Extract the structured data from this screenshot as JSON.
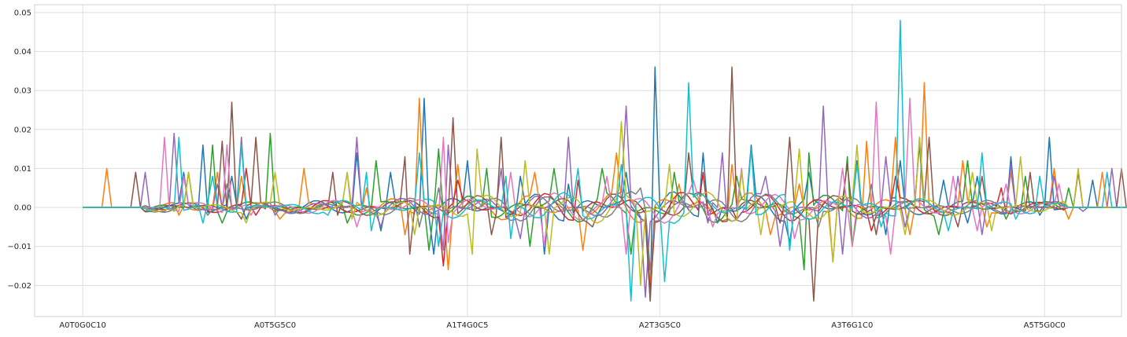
{
  "chart_data": {
    "type": "line",
    "title": "",
    "xlabel": "",
    "ylabel": "",
    "ylim": [
      -0.028,
      0.052
    ],
    "yticks": [
      -0.02,
      -0.01,
      0.0,
      0.01,
      0.02,
      0.03,
      0.04,
      0.05
    ],
    "ytick_labels": [
      "−0.02",
      "−0.01",
      "0.00",
      "0.01",
      "0.02",
      "0.03",
      "0.04",
      "0.05"
    ],
    "xlim": [
      -10,
      216
    ],
    "xticks": [
      0,
      40,
      80,
      120,
      160,
      200
    ],
    "xtick_labels": [
      "A0T0G0C10",
      "A0T5G5C0",
      "A1T4G0C5",
      "A2T3G5C0",
      "A3T6G1C0",
      "A5T5G0C0"
    ],
    "grid": true,
    "legend": "none",
    "n_points": 228,
    "colors": [
      "#1f77b4",
      "#ff7f0e",
      "#2ca02c",
      "#d62728",
      "#9467bd",
      "#8c564b",
      "#e377c2",
      "#7f7f7f",
      "#bcbd22",
      "#17becf"
    ],
    "series": [
      {
        "color": "#1f77b4",
        "peaks": [
          [
            21,
            0.009
          ],
          [
            25,
            0.016
          ],
          [
            31,
            0.008
          ],
          [
            57,
            0.014
          ],
          [
            64,
            0.009
          ],
          [
            71,
            0.028
          ],
          [
            80,
            0.012
          ],
          [
            91,
            0.008
          ],
          [
            101,
            0.006
          ],
          [
            113,
            0.009
          ],
          [
            119,
            0.036
          ],
          [
            129,
            0.014
          ],
          [
            139,
            0.016
          ],
          [
            151,
            0.009
          ],
          [
            161,
            0.012
          ],
          [
            170,
            0.012
          ],
          [
            179,
            0.007
          ],
          [
            186,
            0.008
          ],
          [
            193,
            0.013
          ],
          [
            201,
            0.018
          ],
          [
            210,
            0.007
          ]
        ],
        "dips": [
          [
            34,
            -0.003
          ],
          [
            62,
            -0.006
          ],
          [
            73,
            -0.012
          ],
          [
            96,
            -0.012
          ],
          [
            118,
            -0.024
          ],
          [
            132,
            -0.004
          ],
          [
            147,
            -0.009
          ],
          [
            167,
            -0.007
          ],
          [
            184,
            -0.004
          ],
          [
            199,
            -0.002
          ]
        ]
      },
      {
        "color": "#ff7f0e",
        "peaks": [
          [
            5,
            0.01
          ],
          [
            28,
            0.009
          ],
          [
            33,
            0.008
          ],
          [
            46,
            0.01
          ],
          [
            59,
            0.005
          ],
          [
            70,
            0.028
          ],
          [
            78,
            0.011
          ],
          [
            94,
            0.009
          ],
          [
            111,
            0.014
          ],
          [
            124,
            0.006
          ],
          [
            135,
            0.011
          ],
          [
            149,
            0.006
          ],
          [
            163,
            0.017
          ],
          [
            169,
            0.018
          ],
          [
            175,
            0.032
          ],
          [
            183,
            0.012
          ],
          [
            193,
            0.009
          ],
          [
            202,
            0.01
          ],
          [
            212,
            0.009
          ]
        ],
        "dips": [
          [
            20,
            -0.002
          ],
          [
            41,
            -0.003
          ],
          [
            67,
            -0.007
          ],
          [
            76,
            -0.016
          ],
          [
            104,
            -0.011
          ],
          [
            118,
            -0.02
          ],
          [
            143,
            -0.007
          ],
          [
            156,
            -0.014
          ],
          [
            172,
            -0.007
          ],
          [
            188,
            -0.005
          ],
          [
            205,
            -0.003
          ]
        ]
      },
      {
        "color": "#2ca02c",
        "peaks": [
          [
            22,
            0.009
          ],
          [
            27,
            0.016
          ],
          [
            39,
            0.019
          ],
          [
            61,
            0.012
          ],
          [
            74,
            0.015
          ],
          [
            84,
            0.01
          ],
          [
            98,
            0.01
          ],
          [
            108,
            0.01
          ],
          [
            123,
            0.009
          ],
          [
            136,
            0.008
          ],
          [
            151,
            0.014
          ],
          [
            159,
            0.013
          ],
          [
            174,
            0.016
          ],
          [
            184,
            0.012
          ],
          [
            196,
            0.008
          ],
          [
            205,
            0.005
          ]
        ],
        "dips": [
          [
            13,
            -0.001
          ],
          [
            29,
            -0.004
          ],
          [
            55,
            -0.004
          ],
          [
            72,
            -0.011
          ],
          [
            93,
            -0.01
          ],
          [
            114,
            -0.012
          ],
          [
            130,
            -0.003
          ],
          [
            150,
            -0.016
          ],
          [
            160,
            -0.01
          ],
          [
            178,
            -0.007
          ],
          [
            192,
            -0.003
          ]
        ]
      },
      {
        "color": "#d62728",
        "peaks": [
          [
            34,
            0.01
          ],
          [
            78,
            0.007
          ],
          [
            103,
            0.007
          ],
          [
            129,
            0.009
          ],
          [
            169,
            0.008
          ],
          [
            191,
            0.005
          ]
        ],
        "dips": [
          [
            36,
            -0.002
          ],
          [
            75,
            -0.015
          ],
          [
            118,
            -0.022
          ],
          [
            136,
            -0.003
          ],
          [
            164,
            -0.006
          ],
          [
            194,
            -0.001
          ]
        ]
      },
      {
        "color": "#9467bd",
        "peaks": [
          [
            13,
            0.009
          ],
          [
            19,
            0.019
          ],
          [
            28,
            0.006
          ],
          [
            33,
            0.018
          ],
          [
            57,
            0.018
          ],
          [
            62,
            0.01
          ],
          [
            76,
            0.016
          ],
          [
            87,
            0.01
          ],
          [
            101,
            0.018
          ],
          [
            113,
            0.026
          ],
          [
            133,
            0.014
          ],
          [
            142,
            0.008
          ],
          [
            154,
            0.026
          ],
          [
            167,
            0.013
          ],
          [
            174,
            0.018
          ],
          [
            182,
            0.008
          ],
          [
            193,
            0.011
          ],
          [
            202,
            0.008
          ],
          [
            214,
            0.01
          ]
        ],
        "dips": [
          [
            17,
            -0.001
          ],
          [
            40,
            -0.002
          ],
          [
            62,
            -0.005
          ],
          [
            75,
            -0.011
          ],
          [
            91,
            -0.008
          ],
          [
            117,
            -0.023
          ],
          [
            130,
            -0.004
          ],
          [
            145,
            -0.01
          ],
          [
            158,
            -0.012
          ],
          [
            171,
            -0.005
          ],
          [
            187,
            -0.007
          ],
          [
            208,
            -0.001
          ]
        ]
      },
      {
        "color": "#8c564b",
        "peaks": [
          [
            11,
            0.009
          ],
          [
            29,
            0.017
          ],
          [
            31,
            0.027
          ],
          [
            36,
            0.018
          ],
          [
            52,
            0.009
          ],
          [
            67,
            0.013
          ],
          [
            77,
            0.023
          ],
          [
            87,
            0.018
          ],
          [
            106,
            0.018
          ],
          [
            126,
            0.014
          ],
          [
            135,
            0.036
          ],
          [
            147,
            0.018
          ],
          [
            159,
            0.011
          ],
          [
            176,
            0.018
          ],
          [
            187,
            0.008
          ],
          [
            197,
            0.009
          ],
          [
            207,
            0.009
          ],
          [
            216,
            0.01
          ]
        ],
        "dips": [
          [
            15,
            -0.001
          ],
          [
            33,
            -0.003
          ],
          [
            53,
            -0.002
          ],
          [
            68,
            -0.012
          ],
          [
            85,
            -0.007
          ],
          [
            106,
            -0.005
          ],
          [
            118,
            -0.024
          ],
          [
            145,
            -0.004
          ],
          [
            152,
            -0.024
          ],
          [
            165,
            -0.007
          ],
          [
            182,
            -0.005
          ],
          [
            199,
            -0.001
          ]
        ]
      },
      {
        "color": "#e377c2",
        "peaks": [
          [
            17,
            0.018
          ],
          [
            21,
            0.008
          ],
          [
            30,
            0.016
          ],
          [
            55,
            0.009
          ],
          [
            75,
            0.018
          ],
          [
            89,
            0.009
          ],
          [
            109,
            0.008
          ],
          [
            127,
            0.007
          ],
          [
            137,
            0.01
          ],
          [
            158,
            0.01
          ],
          [
            165,
            0.027
          ],
          [
            172,
            0.028
          ],
          [
            181,
            0.008
          ],
          [
            192,
            0.006
          ],
          [
            203,
            0.006
          ]
        ],
        "dips": [
          [
            20,
            -0.001
          ],
          [
            35,
            -0.002
          ],
          [
            57,
            -0.005
          ],
          [
            76,
            -0.009
          ],
          [
            96,
            -0.01
          ],
          [
            113,
            -0.012
          ],
          [
            131,
            -0.005
          ],
          [
            148,
            -0.008
          ],
          [
            160,
            -0.01
          ],
          [
            168,
            -0.012
          ],
          [
            186,
            -0.006
          ]
        ]
      },
      {
        "color": "#7f7f7f",
        "peaks": [
          [
            30,
            0.006
          ],
          [
            74,
            0.005
          ],
          [
            116,
            0.005
          ],
          [
            164,
            0.006
          ]
        ],
        "dips": [
          [
            26,
            -0.002
          ],
          [
            70,
            -0.005
          ],
          [
            118,
            -0.016
          ],
          [
            153,
            -0.005
          ]
        ]
      },
      {
        "color": "#bcbd22",
        "peaks": [
          [
            22,
            0.009
          ],
          [
            40,
            0.009
          ],
          [
            55,
            0.009
          ],
          [
            69,
            0.011
          ],
          [
            82,
            0.015
          ],
          [
            92,
            0.012
          ],
          [
            112,
            0.022
          ],
          [
            122,
            0.011
          ],
          [
            137,
            0.009
          ],
          [
            149,
            0.015
          ],
          [
            161,
            0.016
          ],
          [
            174,
            0.018
          ],
          [
            185,
            0.009
          ],
          [
            195,
            0.013
          ],
          [
            207,
            0.01
          ]
        ],
        "dips": [
          [
            19,
            -0.001
          ],
          [
            34,
            -0.004
          ],
          [
            56,
            -0.003
          ],
          [
            69,
            -0.007
          ],
          [
            81,
            -0.012
          ],
          [
            97,
            -0.012
          ],
          [
            116,
            -0.02
          ],
          [
            141,
            -0.007
          ],
          [
            156,
            -0.014
          ],
          [
            171,
            -0.007
          ],
          [
            189,
            -0.006
          ]
        ]
      },
      {
        "color": "#17becf",
        "peaks": [
          [
            20,
            0.018
          ],
          [
            27,
            0.008
          ],
          [
            33,
            0.016
          ],
          [
            59,
            0.009
          ],
          [
            70,
            0.014
          ],
          [
            88,
            0.008
          ],
          [
            103,
            0.01
          ],
          [
            112,
            0.011
          ],
          [
            126,
            0.032
          ],
          [
            139,
            0.015
          ],
          [
            147,
            0.013
          ],
          [
            161,
            0.011
          ],
          [
            170,
            0.048
          ],
          [
            187,
            0.014
          ],
          [
            199,
            0.008
          ],
          [
            213,
            0.009
          ]
        ],
        "dips": [
          [
            14,
            -0.001
          ],
          [
            25,
            -0.004
          ],
          [
            51,
            -0.002
          ],
          [
            60,
            -0.006
          ],
          [
            74,
            -0.01
          ],
          [
            89,
            -0.008
          ],
          [
            114,
            -0.024
          ],
          [
            121,
            -0.019
          ],
          [
            147,
            -0.011
          ],
          [
            166,
            -0.005
          ],
          [
            180,
            -0.006
          ],
          [
            194,
            -0.003
          ]
        ]
      }
    ]
  }
}
